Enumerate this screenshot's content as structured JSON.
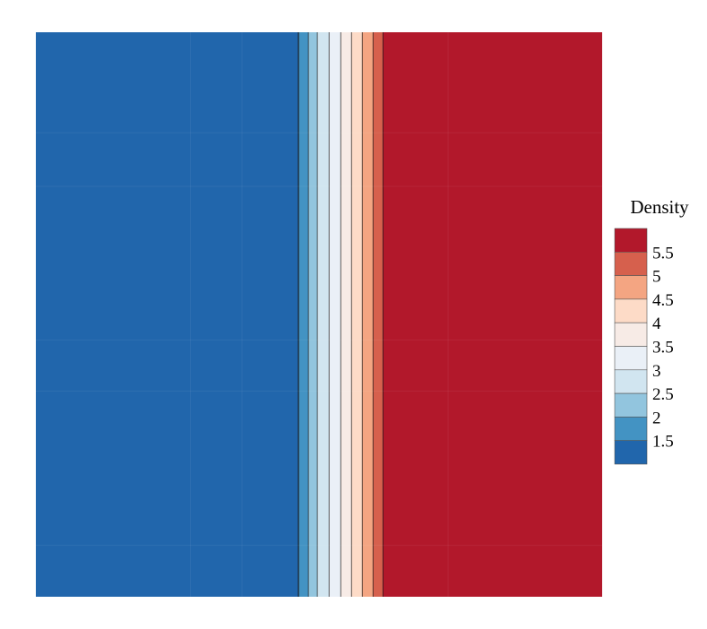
{
  "chart_data": {
    "type": "heatmap",
    "title": "",
    "xlabel": "",
    "ylabel": "",
    "colorbar": {
      "title": "Density",
      "ticks": [
        "1.5",
        "2",
        "2.5",
        "3",
        "3.5",
        "4",
        "4.5",
        "5",
        "5.5"
      ],
      "levels": [
        1.0,
        1.5,
        2.0,
        2.5,
        3.0,
        3.5,
        4.0,
        4.5,
        5.0,
        5.5,
        6.0
      ],
      "colors": [
        "#2166ac",
        "#4393c3",
        "#92c5de",
        "#d1e5f0",
        "#eaf0f7",
        "#f7ebe6",
        "#fddbc7",
        "#f4a582",
        "#d6604d",
        "#b2182b"
      ],
      "placement": "right"
    },
    "field": {
      "description_of_variation": "density constant in y, increasing from left to right with a sharp transition",
      "left_state": 1.0,
      "right_state": 6.0,
      "contour_bands": [
        {
          "value_min": 1.0,
          "value_max": 1.5,
          "x_from": 0.0,
          "x_to": 0.4637
        },
        {
          "value_min": 1.5,
          "value_max": 2.0,
          "x_from": 0.4637,
          "x_to": 0.4812
        },
        {
          "value_min": 2.0,
          "value_max": 2.5,
          "x_from": 0.4812,
          "x_to": 0.497
        },
        {
          "value_min": 2.5,
          "value_max": 3.0,
          "x_from": 0.497,
          "x_to": 0.5177
        },
        {
          "value_min": 3.0,
          "value_max": 3.5,
          "x_from": 0.5177,
          "x_to": 0.5383
        },
        {
          "value_min": 3.5,
          "value_max": 4.0,
          "x_from": 0.5383,
          "x_to": 0.5573
        },
        {
          "value_min": 4.0,
          "value_max": 4.5,
          "x_from": 0.5573,
          "x_to": 0.5763
        },
        {
          "value_min": 4.5,
          "value_max": 5.0,
          "x_from": 0.5763,
          "x_to": 0.5953
        },
        {
          "value_min": 5.0,
          "value_max": 5.5,
          "x_from": 0.5953,
          "x_to": 0.6128
        },
        {
          "value_min": 5.5,
          "value_max": 6.0,
          "x_from": 0.6128,
          "x_to": 1.0
        }
      ]
    },
    "grid": false
  }
}
